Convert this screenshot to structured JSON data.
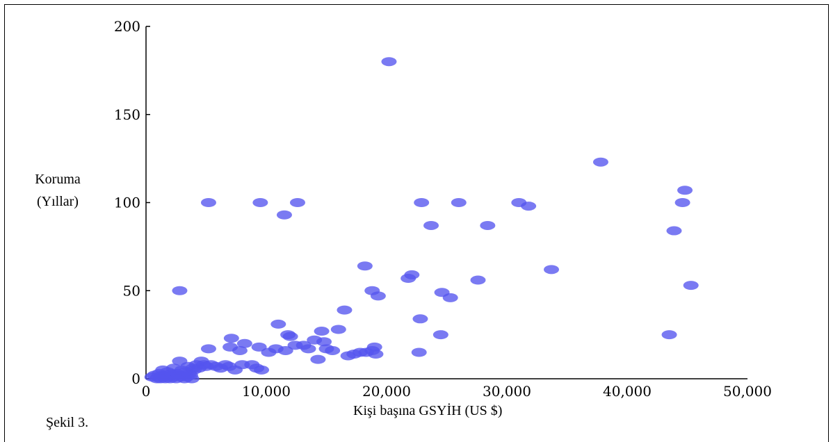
{
  "chart_data": {
    "type": "scatter",
    "xlabel": "Kişi başına GSYİH (US $)",
    "ylabel_line1": "Koruma",
    "ylabel_line2": "(Yıllar)",
    "caption": "Şekil 3.",
    "xlim": [
      0,
      50000
    ],
    "ylim": [
      0,
      200
    ],
    "x_ticks": [
      0,
      10000,
      20000,
      30000,
      40000,
      50000
    ],
    "x_tick_labels": [
      "0",
      "10,000",
      "20,000",
      "30,000",
      "40,000",
      "50,000"
    ],
    "y_ticks": [
      0,
      50,
      100,
      150,
      200
    ],
    "y_tick_labels": [
      "0",
      "50",
      "100",
      "150",
      "200"
    ],
    "grid": false,
    "point_color": "#5555ee",
    "points": [
      [
        500,
        1
      ],
      [
        700,
        2
      ],
      [
        900,
        0
      ],
      [
        1000,
        1
      ],
      [
        1100,
        3
      ],
      [
        1200,
        0
      ],
      [
        1300,
        2
      ],
      [
        1400,
        5
      ],
      [
        1500,
        1
      ],
      [
        1600,
        0
      ],
      [
        1700,
        2
      ],
      [
        1800,
        4
      ],
      [
        1900,
        1
      ],
      [
        2000,
        0
      ],
      [
        2100,
        3
      ],
      [
        2200,
        2
      ],
      [
        2300,
        6
      ],
      [
        2400,
        1
      ],
      [
        2500,
        0
      ],
      [
        2600,
        3
      ],
      [
        2700,
        2
      ],
      [
        2800,
        10
      ],
      [
        2900,
        1
      ],
      [
        3000,
        5
      ],
      [
        3100,
        2
      ],
      [
        3200,
        0
      ],
      [
        3300,
        4
      ],
      [
        3400,
        1
      ],
      [
        3500,
        7
      ],
      [
        3600,
        3
      ],
      [
        3700,
        2
      ],
      [
        3800,
        0
      ],
      [
        3900,
        6
      ],
      [
        4000,
        5
      ],
      [
        4200,
        8
      ],
      [
        4400,
        6
      ],
      [
        4600,
        10
      ],
      [
        4800,
        8
      ],
      [
        5000,
        7
      ],
      [
        5200,
        17
      ],
      [
        5400,
        8
      ],
      [
        5800,
        7
      ],
      [
        6200,
        6
      ],
      [
        6600,
        8
      ],
      [
        6900,
        7
      ],
      [
        7000,
        18
      ],
      [
        7100,
        23
      ],
      [
        7400,
        5
      ],
      [
        7800,
        16
      ],
      [
        8000,
        8
      ],
      [
        8200,
        20
      ],
      [
        8800,
        8
      ],
      [
        9200,
        6
      ],
      [
        9400,
        18
      ],
      [
        9600,
        5
      ],
      [
        10200,
        15
      ],
      [
        10800,
        17
      ],
      [
        11000,
        31
      ],
      [
        11600,
        16
      ],
      [
        11800,
        25
      ],
      [
        12000,
        24
      ],
      [
        12400,
        19
      ],
      [
        13100,
        19
      ],
      [
        13500,
        17
      ],
      [
        14000,
        22
      ],
      [
        14300,
        11
      ],
      [
        14600,
        27
      ],
      [
        14800,
        21
      ],
      [
        15000,
        17
      ],
      [
        15500,
        16
      ],
      [
        16000,
        28
      ],
      [
        16800,
        13
      ],
      [
        17300,
        14
      ],
      [
        17800,
        15
      ],
      [
        18300,
        15
      ],
      [
        18800,
        16
      ],
      [
        19000,
        18
      ],
      [
        19100,
        14
      ],
      [
        16500,
        39
      ],
      [
        18200,
        64
      ],
      [
        18800,
        50
      ],
      [
        19300,
        47
      ],
      [
        21800,
        57
      ],
      [
        22100,
        59
      ],
      [
        22800,
        34
      ],
      [
        22700,
        15
      ],
      [
        24500,
        25
      ],
      [
        24600,
        49
      ],
      [
        25300,
        46
      ],
      [
        27600,
        56
      ],
      [
        33700,
        62
      ],
      [
        43500,
        25
      ],
      [
        45300,
        53
      ],
      [
        44800,
        107
      ],
      [
        44600,
        100
      ],
      [
        43900,
        84
      ],
      [
        37800,
        123
      ],
      [
        31000,
        100
      ],
      [
        31800,
        98
      ],
      [
        28400,
        87
      ],
      [
        26000,
        100
      ],
      [
        23700,
        87
      ],
      [
        22900,
        100
      ],
      [
        20200,
        180
      ],
      [
        5200,
        100
      ],
      [
        9500,
        100
      ],
      [
        11500,
        93
      ],
      [
        12600,
        100
      ],
      [
        2800,
        50
      ]
    ]
  }
}
